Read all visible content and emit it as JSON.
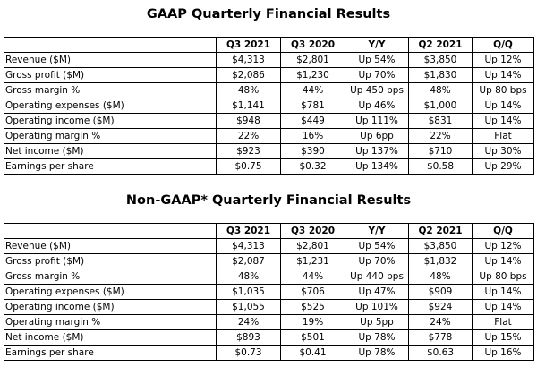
{
  "gaap": {
    "title": "GAAP Quarterly Financial Results",
    "headers": [
      "",
      "Q3 2021",
      "Q3 2020",
      "Y/Y",
      "Q2 2021",
      "Q/Q"
    ],
    "rows": [
      [
        "Revenue ($M)",
        "$4,313",
        "$2,801",
        "Up 54%",
        "$3,850",
        "Up 12%"
      ],
      [
        "Gross profit ($M)",
        "$2,086",
        "$1,230",
        "Up 70%",
        "$1,830",
        "Up 14%"
      ],
      [
        "Gross margin %",
        "48%",
        "44%",
        "Up 450 bps",
        "48%",
        "Up 80 bps"
      ],
      [
        "Operating expenses ($M)",
        "$1,141",
        "$781",
        "Up 46%",
        "$1,000",
        "Up 14%"
      ],
      [
        "Operating income ($M)",
        "$948",
        "$449",
        "Up 111%",
        "$831",
        "Up 14%"
      ],
      [
        "Operating margin %",
        "22%",
        "16%",
        "Up 6pp",
        "22%",
        "Flat"
      ],
      [
        "Net income ($M)",
        "$923",
        "$390",
        "Up 137%",
        "$710",
        "Up 30%"
      ],
      [
        "Earnings per share",
        "$0.75",
        "$0.32",
        "Up 134%",
        "$0.58",
        "Up 29%"
      ]
    ]
  },
  "nongaap": {
    "title": "Non-GAAP* Quarterly Financial Results",
    "headers": [
      "",
      "Q3 2021",
      "Q3 2020",
      "Y/Y",
      "Q2 2021",
      "Q/Q"
    ],
    "rows": [
      [
        "Revenue ($M)",
        "$4,313",
        "$2,801",
        "Up 54%",
        "$3,850",
        "Up 12%"
      ],
      [
        "Gross profit ($M)",
        "$2,087",
        "$1,231",
        "Up 70%",
        "$1,832",
        "Up 14%"
      ],
      [
        "Gross margin %",
        "48%",
        "44%",
        "Up 440 bps",
        "48%",
        "Up 80 bps"
      ],
      [
        "Operating expenses ($M)",
        "$1,035",
        "$706",
        "Up 47%",
        "$909",
        "Up 14%"
      ],
      [
        "Operating income ($M)",
        "$1,055",
        "$525",
        "Up 101%",
        "$924",
        "Up 14%"
      ],
      [
        "Operating margin %",
        "24%",
        "19%",
        "Up 5pp",
        "24%",
        "Flat"
      ],
      [
        "Net income ($M)",
        "$893",
        "$501",
        "Up 78%",
        "$778",
        "Up 15%"
      ],
      [
        "Earnings per share",
        "$0.73",
        "$0.41",
        "Up 78%",
        "$0.63",
        "Up 16%"
      ]
    ]
  }
}
